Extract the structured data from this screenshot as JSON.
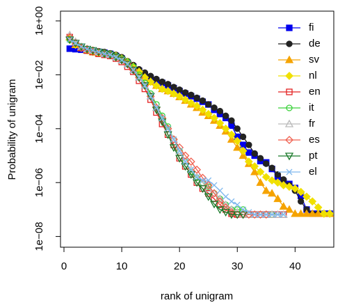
{
  "chart_data": {
    "type": "line",
    "xlabel": "rank of unigram",
    "ylabel": "Probability of unigram",
    "log_y": true,
    "legend": "top-right",
    "xlim": [
      -0.6,
      46.7
    ],
    "xticks": [
      0,
      10,
      20,
      30,
      40
    ],
    "ylim": [
      4e-09,
      2.3
    ],
    "yticks": [
      {
        "value": 1,
        "label": "1e+00"
      },
      {
        "value": 0.01,
        "label": "1e−02"
      },
      {
        "value": 0.0001,
        "label": "1e−04"
      },
      {
        "value": 1e-06,
        "label": "1e−06"
      },
      {
        "value": 1e-08,
        "label": "1e−08"
      }
    ],
    "x": [
      1,
      2,
      3,
      4,
      5,
      6,
      7,
      8,
      9,
      10,
      11,
      12,
      13,
      14,
      15,
      16,
      17,
      18,
      19,
      20,
      21,
      22,
      23,
      24,
      25,
      26,
      27,
      28,
      29,
      30,
      31,
      32,
      33,
      34,
      35,
      36,
      37,
      38,
      39,
      40,
      41,
      42,
      43,
      44,
      45,
      46
    ],
    "series": [
      {
        "name": "fi",
        "color": "#0000ee",
        "marker": "square",
        "filled": true,
        "values": [
          0.093,
          0.089,
          0.085,
          0.079,
          0.076,
          0.071,
          0.066,
          0.06,
          0.05,
          0.04,
          0.028,
          0.02,
          0.014,
          0.01,
          0.0076,
          0.006,
          0.005,
          0.004,
          0.0032,
          0.0025,
          0.002,
          0.0016,
          0.0013,
          0.001,
          0.00079,
          0.0005,
          0.00035,
          0.00025,
          0.00013,
          5e-05,
          2.5e-05,
          1.3e-05,
          1e-05,
          6.3e-06,
          5.6e-06,
          3.2e-06,
          1.6e-06,
          1.1e-06,
          8.9e-07,
          6.3e-07,
          3.2e-07,
          1e-07,
          7e-08,
          7e-08,
          7e-08,
          7e-08
        ]
      },
      {
        "name": "de",
        "color": "#222222",
        "marker": "circle",
        "filled": true,
        "values": [
          0.2,
          0.13,
          0.1,
          0.085,
          0.08,
          0.075,
          0.07,
          0.063,
          0.055,
          0.045,
          0.032,
          0.023,
          0.016,
          0.012,
          0.009,
          0.007,
          0.0055,
          0.0045,
          0.0035,
          0.0028,
          0.0022,
          0.0018,
          0.0014,
          0.0011,
          0.0008,
          0.0006,
          0.00045,
          0.0003,
          0.0002,
          0.0001,
          5e-05,
          2.5e-05,
          1.2e-05,
          8e-06,
          5e-06,
          3.5e-06,
          2e-06,
          1.3e-06,
          8e-07,
          5e-07,
          2e-07,
          1e-07,
          7e-08,
          7e-08,
          7e-08,
          7e-08
        ]
      },
      {
        "name": "sv",
        "color": "#f5a300",
        "marker": "triangle",
        "filled": true,
        "values": [
          0.25,
          0.13,
          0.1,
          0.08,
          0.07,
          0.065,
          0.06,
          0.055,
          0.05,
          0.04,
          0.03,
          0.02,
          0.013,
          0.008,
          0.0055,
          0.004,
          0.003,
          0.0025,
          0.002,
          0.0015,
          0.0011,
          0.0008,
          0.0006,
          0.0004,
          0.0003,
          0.0002,
          0.00013,
          8e-05,
          4e-05,
          2e-05,
          1e-05,
          5e-06,
          2.5e-06,
          1e-06,
          5e-07,
          4e-07,
          2.5e-07,
          1.3e-07,
          1e-07,
          7e-08,
          7e-08,
          7e-08,
          7e-08,
          7e-08,
          7e-08,
          7e-08
        ]
      },
      {
        "name": "nl",
        "color": "#f0e000",
        "marker": "diamond",
        "filled": true,
        "values": [
          0.2,
          0.13,
          0.1,
          0.08,
          0.07,
          0.065,
          0.06,
          0.055,
          0.05,
          0.04,
          0.03,
          0.02,
          0.013,
          0.008,
          0.0055,
          0.004,
          0.003,
          0.0025,
          0.002,
          0.0016,
          0.0012,
          0.0009,
          0.0007,
          0.0005,
          0.00035,
          0.00025,
          0.00016,
          0.0001,
          6e-05,
          3.5e-05,
          1.5e-05,
          6e-06,
          4e-06,
          2.5e-06,
          1.6e-06,
          1.2e-06,
          1e-06,
          8e-07,
          7e-07,
          6e-07,
          4.5e-07,
          3e-07,
          2e-07,
          1.2e-07,
          7e-08,
          7e-08
        ]
      },
      {
        "name": "en",
        "color": "#e32020",
        "marker": "square",
        "filled": false,
        "values": [
          0.25,
          0.15,
          0.1,
          0.08,
          0.07,
          0.06,
          0.055,
          0.05,
          0.04,
          0.03,
          0.02,
          0.013,
          0.006,
          0.003,
          0.0012,
          0.0004,
          0.00015,
          6e-05,
          2.5e-05,
          8e-06,
          4e-06,
          2e-06,
          1e-06,
          6e-07,
          4e-07,
          2.5e-07,
          1.5e-07,
          1e-07,
          7e-08,
          6.5e-08,
          6.5e-08,
          6.5e-08,
          6.5e-08,
          6.5e-08,
          6.5e-08,
          6.5e-08,
          6.5e-08,
          6.5e-08,
          null,
          null,
          null,
          null,
          null,
          null,
          null,
          null
        ]
      },
      {
        "name": "it",
        "color": "#3ad13a",
        "marker": "circle",
        "filled": false,
        "values": [
          0.2,
          0.15,
          0.11,
          0.09,
          0.08,
          0.07,
          0.065,
          0.06,
          0.05,
          0.04,
          0.03,
          0.02,
          0.01,
          0.005,
          0.002,
          0.0008,
          0.0003,
          0.00012,
          4e-05,
          1.5e-05,
          6e-06,
          2.5e-06,
          1.5e-06,
          1e-06,
          7e-07,
          4e-07,
          2.5e-07,
          1.5e-07,
          1e-07,
          1e-07,
          1e-07,
          6.5e-08,
          6.5e-08,
          6.5e-08,
          6.5e-08,
          6.5e-08,
          null,
          null,
          null,
          null,
          null,
          null,
          null,
          null,
          null,
          null
        ]
      },
      {
        "name": "fr",
        "color": "#bbbbbb",
        "marker": "triangle",
        "filled": false,
        "values": [
          0.3,
          0.17,
          0.11,
          0.09,
          0.08,
          0.07,
          0.06,
          0.055,
          0.045,
          0.035,
          0.025,
          0.015,
          0.008,
          0.004,
          0.0016,
          0.0006,
          0.00025,
          0.0001,
          4e-05,
          1.5e-05,
          6e-06,
          3e-06,
          1.6e-06,
          1e-06,
          6e-07,
          4e-07,
          2.5e-07,
          1.5e-07,
          1e-07,
          8e-08,
          6.5e-08,
          6.5e-08,
          6.5e-08,
          6.5e-08,
          6.5e-08,
          6.5e-08,
          6.5e-08,
          6.5e-08,
          null,
          null,
          null,
          null,
          null,
          null,
          null,
          null
        ]
      },
      {
        "name": "es",
        "color": "#f06050",
        "marker": "diamond",
        "filled": false,
        "values": [
          0.25,
          0.15,
          0.1,
          0.09,
          0.08,
          0.07,
          0.06,
          0.055,
          0.045,
          0.035,
          0.025,
          0.015,
          0.008,
          0.004,
          0.0016,
          0.0006,
          0.00025,
          0.0001,
          4e-05,
          2e-05,
          1e-05,
          6e-06,
          3e-06,
          1.5e-06,
          8e-07,
          4e-07,
          2e-07,
          1.2e-07,
          8e-08,
          6.5e-08,
          6.5e-08,
          6.5e-08,
          6.5e-08,
          6.5e-08,
          6.5e-08,
          null,
          null,
          null,
          null,
          null,
          null,
          null,
          null,
          null,
          null,
          null
        ]
      },
      {
        "name": "pt",
        "color": "#1a7a2a",
        "marker": "down-triangle",
        "filled": false,
        "values": [
          0.2,
          0.15,
          0.11,
          0.09,
          0.08,
          0.07,
          0.06,
          0.055,
          0.045,
          0.035,
          0.025,
          0.015,
          0.008,
          0.004,
          0.0016,
          0.0005,
          0.00018,
          6e-05,
          2e-05,
          8e-06,
          4e-06,
          2e-06,
          1e-06,
          6e-07,
          3e-07,
          1.6e-07,
          1e-07,
          8e-08,
          6.5e-08,
          6.5e-08,
          6.5e-08,
          null,
          null,
          null,
          null,
          null,
          null,
          null,
          null,
          null,
          null,
          null,
          null,
          null,
          null,
          null
        ]
      },
      {
        "name": "el",
        "color": "#7fb8ee",
        "marker": "cross",
        "filled": false,
        "values": [
          0.2,
          0.15,
          0.11,
          0.09,
          0.08,
          0.07,
          0.06,
          0.055,
          0.045,
          0.035,
          0.025,
          0.015,
          0.008,
          0.004,
          0.0016,
          0.0006,
          0.00025,
          0.0001,
          4e-05,
          1.5e-05,
          6e-06,
          3e-06,
          1.6e-06,
          1.2e-06,
          1.2e-06,
          8e-07,
          5e-07,
          3e-07,
          2e-07,
          1.5e-07,
          1e-07,
          8e-08,
          6.5e-08,
          6.5e-08,
          6.5e-08,
          6.5e-08,
          6.5e-08,
          6.5e-08,
          null,
          null,
          null,
          null,
          null,
          null,
          null,
          null
        ]
      }
    ]
  }
}
